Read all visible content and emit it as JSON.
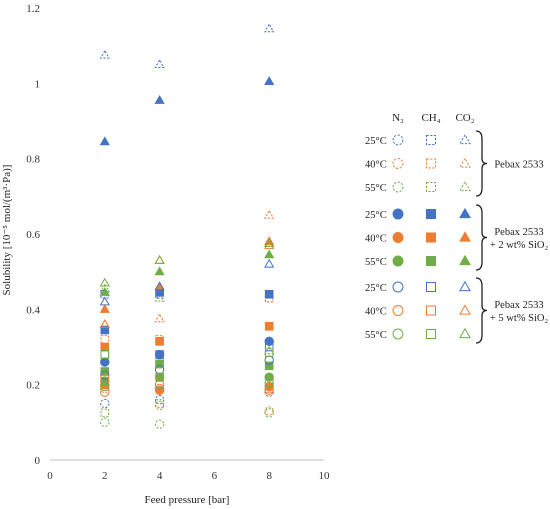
{
  "chart_data": {
    "type": "scatter",
    "xlabel": "Feed pressure [bar]",
    "ylabel": "Solubility [10⁻⁵ mol/(m³·Pa)]",
    "xlim": [
      0,
      10
    ],
    "ylim": [
      0,
      1.2
    ],
    "xticks": [
      "0",
      "2",
      "4",
      "6",
      "8",
      "10"
    ],
    "yticks": [
      "0",
      "0.2",
      "0.4",
      "0.6",
      "0.8",
      "1",
      "1.2"
    ],
    "grid": false,
    "legend_position": "right",
    "legend": {
      "gas_headers": [
        "N₂",
        "CH₄",
        "CO₂"
      ],
      "temperature_labels": [
        "25°C",
        "40°C",
        "55°C"
      ],
      "groups": [
        {
          "label": "Pebax 2533",
          "fill": "dashed"
        },
        {
          "label": "Pebax 2533\n+ 2 wt% SiO₂",
          "fill": "filled"
        },
        {
          "label": "Pebax 2533\n+ 5 wt% SiO₂",
          "fill": "open"
        }
      ]
    },
    "colors": {
      "25C": "#4472c4",
      "40C": "#ed7d31",
      "55C": "#70ad47"
    },
    "markers": {
      "N2": "circle",
      "CH4": "square",
      "CO2": "triangle"
    },
    "x": [
      2,
      4,
      8
    ],
    "series": [
      {
        "group": 0,
        "temp": "25C",
        "gas": "N2",
        "values": [
          0.15,
          0.16,
          0.18
        ]
      },
      {
        "group": 0,
        "temp": "25C",
        "gas": "CH4",
        "values": [
          0.44,
          0.44,
          0.43
        ]
      },
      {
        "group": 0,
        "temp": "25C",
        "gas": "CO2",
        "values": [
          1.075,
          1.05,
          1.145
        ]
      },
      {
        "group": 0,
        "temp": "40C",
        "gas": "N2",
        "values": [
          0.19,
          0.145,
          0.13
        ]
      },
      {
        "group": 0,
        "temp": "40C",
        "gas": "CH4",
        "values": [
          0.32,
          0.32,
          0.43
        ]
      },
      {
        "group": 0,
        "temp": "40C",
        "gas": "CO2",
        "values": [
          0.36,
          0.375,
          0.65
        ]
      },
      {
        "group": 0,
        "temp": "55C",
        "gas": "N2",
        "values": [
          0.1,
          0.095,
          0.125
        ]
      },
      {
        "group": 0,
        "temp": "55C",
        "gas": "CH4",
        "values": [
          0.125,
          0.15,
          0.215
        ]
      },
      {
        "group": 0,
        "temp": "55C",
        "gas": "CO2",
        "values": [
          0.455,
          0.43,
          0.29
        ]
      },
      {
        "group": 1,
        "temp": "25C",
        "gas": "N2",
        "values": [
          0.26,
          0.28,
          0.315
        ]
      },
      {
        "group": 1,
        "temp": "25C",
        "gas": "CH4",
        "values": [
          0.345,
          0.445,
          0.44
        ]
      },
      {
        "group": 1,
        "temp": "25C",
        "gas": "CO2",
        "values": [
          0.845,
          0.955,
          1.005
        ]
      },
      {
        "group": 1,
        "temp": "40C",
        "gas": "N2",
        "values": [
          0.2,
          0.185,
          0.195
        ]
      },
      {
        "group": 1,
        "temp": "40C",
        "gas": "CH4",
        "values": [
          0.3,
          0.315,
          0.355
        ]
      },
      {
        "group": 1,
        "temp": "40C",
        "gas": "CO2",
        "values": [
          0.4,
          0.46,
          0.58
        ]
      },
      {
        "group": 1,
        "temp": "55C",
        "gas": "N2",
        "values": [
          0.21,
          0.22,
          0.22
        ]
      },
      {
        "group": 1,
        "temp": "55C",
        "gas": "CH4",
        "values": [
          0.235,
          0.255,
          0.25
        ]
      },
      {
        "group": 1,
        "temp": "55C",
        "gas": "CO2",
        "values": [
          0.445,
          0.5,
          0.545
        ]
      },
      {
        "group": 2,
        "temp": "25C",
        "gas": "N2",
        "values": [
          0.225,
          0.24,
          0.265
        ]
      },
      {
        "group": 2,
        "temp": "25C",
        "gas": "CH4",
        "values": [
          0.28,
          0.28,
          0.3
        ]
      },
      {
        "group": 2,
        "temp": "25C",
        "gas": "CO2",
        "values": [
          0.42,
          0.46,
          0.52
        ]
      },
      {
        "group": 2,
        "temp": "40C",
        "gas": "N2",
        "values": [
          0.18,
          0.19,
          0.185
        ]
      },
      {
        "group": 2,
        "temp": "40C",
        "gas": "CH4",
        "values": [
          0.215,
          0.22,
          0.19
        ]
      },
      {
        "group": 2,
        "temp": "40C",
        "gas": "CO2",
        "values": [
          0.36,
          0.53,
          0.57
        ]
      },
      {
        "group": 2,
        "temp": "55C",
        "gas": "N2",
        "values": [
          0.195,
          0.2,
          0.205
        ]
      },
      {
        "group": 2,
        "temp": "55C",
        "gas": "CH4",
        "values": [
          0.28,
          0.255,
          0.285
        ]
      },
      {
        "group": 2,
        "temp": "55C",
        "gas": "CO2",
        "values": [
          0.47,
          0.53,
          0.575
        ]
      }
    ]
  }
}
